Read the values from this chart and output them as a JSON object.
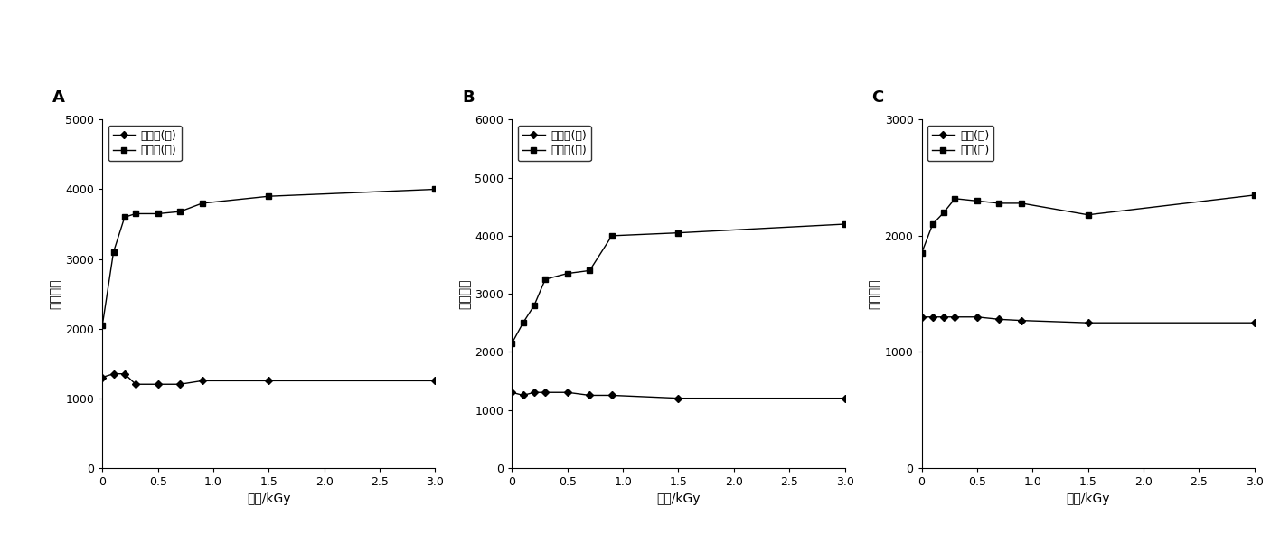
{
  "panel_A": {
    "label": "A",
    "xlabel": "剂量/kGy",
    "ylabel": "光子计数",
    "xlim": [
      0,
      3.0
    ],
    "ylim": [
      0,
      5000
    ],
    "yticks": [
      0,
      1000,
      2000,
      3000,
      4000,
      5000
    ],
    "xticks": [
      0,
      0.5,
      1.0,
      1.5,
      2.0,
      2.5,
      3.0
    ],
    "series": [
      {
        "label": "红蔗糖(干)",
        "x": [
          0,
          0.1,
          0.2,
          0.3,
          0.5,
          0.7,
          0.9,
          1.5,
          3.0
        ],
        "y": [
          1300,
          1350,
          1350,
          1200,
          1200,
          1200,
          1250,
          1250,
          1250
        ],
        "marker": "D"
      },
      {
        "label": "红蔗糖(湿)",
        "x": [
          0,
          0.1,
          0.2,
          0.3,
          0.5,
          0.7,
          0.9,
          1.5,
          3.0
        ],
        "y": [
          2050,
          3100,
          3600,
          3650,
          3650,
          3680,
          3800,
          3900,
          4000
        ],
        "marker": "s"
      }
    ]
  },
  "panel_B": {
    "label": "B",
    "xlabel": "剂量/kGy",
    "ylabel": "光子计数",
    "xlim": [
      0,
      3.0
    ],
    "ylim": [
      0,
      6000
    ],
    "yticks": [
      0,
      1000,
      2000,
      3000,
      4000,
      5000,
      6000
    ],
    "xticks": [
      0,
      0.5,
      1.0,
      1.5,
      2.0,
      2.5,
      3.0
    ],
    "series": [
      {
        "label": "葡萄糖(干)",
        "x": [
          0,
          0.1,
          0.2,
          0.3,
          0.5,
          0.7,
          0.9,
          1.5,
          3.0
        ],
        "y": [
          1300,
          1250,
          1300,
          1300,
          1300,
          1250,
          1250,
          1200,
          1200
        ],
        "marker": "D"
      },
      {
        "label": "葡萄糖(湿)",
        "x": [
          0,
          0.1,
          0.2,
          0.3,
          0.5,
          0.7,
          0.9,
          1.5,
          3.0
        ],
        "y": [
          2150,
          2500,
          2800,
          3250,
          3350,
          3400,
          4000,
          4050,
          4200
        ],
        "marker": "s"
      }
    ]
  },
  "panel_C": {
    "label": "C",
    "xlabel": "辐照/kGy",
    "ylabel": "光子计数",
    "xlim": [
      0,
      3.0
    ],
    "ylim": [
      0,
      3000
    ],
    "yticks": [
      0,
      1000,
      2000,
      3000
    ],
    "xticks": [
      0,
      0.5,
      1.0,
      1.5,
      2.0,
      2.5,
      3.0
    ],
    "series": [
      {
        "label": "蔗糖(干)",
        "x": [
          0,
          0.1,
          0.2,
          0.3,
          0.5,
          0.7,
          0.9,
          1.5,
          3.0
        ],
        "y": [
          1300,
          1300,
          1300,
          1300,
          1300,
          1280,
          1270,
          1250,
          1250
        ],
        "marker": "D"
      },
      {
        "label": "蔗糖(湿)",
        "x": [
          0,
          0.1,
          0.2,
          0.3,
          0.5,
          0.7,
          0.9,
          1.5,
          3.0
        ],
        "y": [
          1850,
          2100,
          2200,
          2320,
          2300,
          2280,
          2280,
          2180,
          2350
        ],
        "marker": "s"
      }
    ]
  },
  "line_color": "#000000",
  "background_color": "#ffffff",
  "fontsize_label": 10,
  "fontsize_tick": 9,
  "fontsize_legend": 9,
  "fontsize_panel_label": 13
}
